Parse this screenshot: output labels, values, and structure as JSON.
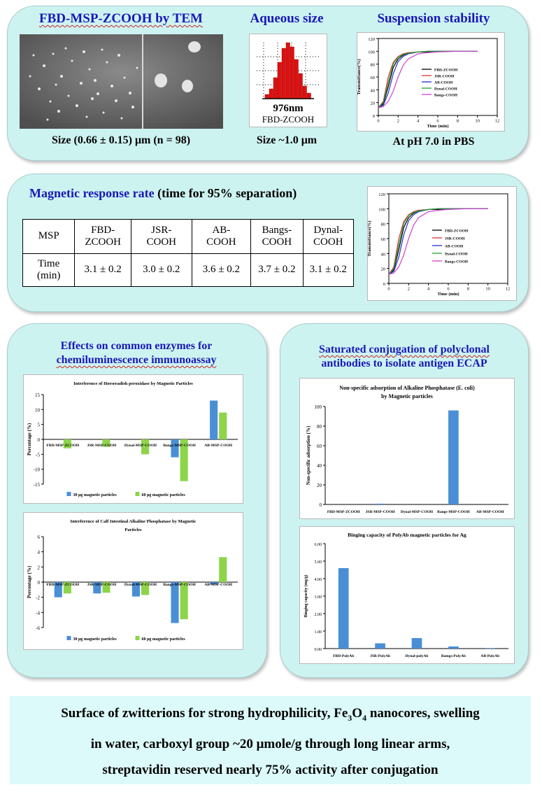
{
  "top": {
    "tem_title": "FBD-MSP-ZCOOH by TEM",
    "tem_caption": "Size (0.66 ± 0.15) μm (n = 98)",
    "aq_title": "Aqueous size",
    "aq_label_size": "976nm",
    "aq_label_name": "FBD-ZCOOH",
    "aq_caption": "Size ~1.0 μm",
    "stab_title": "Suspension stability",
    "stab_caption": "At pH 7.0 in PBS"
  },
  "magnetic": {
    "title_colored": "Magnetic response rate",
    "title_rest": " (time for 95% separation)",
    "header": [
      "MSP",
      "FBD-ZCOOH",
      "JSR-COOH",
      "AB-COOH",
      "Bangs-COOH",
      "Dynal-COOH"
    ],
    "header_display": [
      [
        "MSP"
      ],
      [
        "FBD-",
        "ZCOOH"
      ],
      [
        "JSR-",
        "COOH"
      ],
      [
        "AB-",
        "COOH"
      ],
      [
        "Bangs-",
        "COOH"
      ],
      [
        "Dynal-",
        "COOH"
      ]
    ],
    "row": [
      [
        "Time",
        "(min)"
      ],
      [
        "3.1 ± 0.2"
      ],
      [
        "3.0 ± 0.2"
      ],
      [
        "3.6 ± 0.2"
      ],
      [
        "3.7 ± 0.2"
      ],
      [
        "3.1 ± 0.2"
      ]
    ]
  },
  "enzymes": {
    "title_line1": "Effects on common enzymes for",
    "title_line2": "chemiluminescence immunoassay"
  },
  "conjugation": {
    "title_line1": "Saturated conjugation of polyclonal",
    "title_line2": "antibodies to isolate antigen ECAP"
  },
  "bottom_text": [
    "Surface of zwitterions for strong hydrophilicity, Fe3O4 nanocores, swelling",
    "in water, carboxyl group ~20 μmole/g through long linear arms,",
    "streptavidin reserved nearly 75% activity after conjugation"
  ],
  "colors": {
    "title_blue": "#1818b8",
    "panel": "#cdf3f1",
    "bar_blue": "#4a8fd6",
    "bar_green": "#8ed44a"
  },
  "chart_data": [
    {
      "type": "line",
      "id": "stability-top",
      "xlabel": "Time (min)",
      "ylabel": "Transmittance(%)",
      "xlim": [
        0,
        12
      ],
      "ylim": [
        0,
        120
      ],
      "xticks": [
        0,
        2,
        4,
        6,
        8,
        10,
        12
      ],
      "yticks": [
        0,
        20,
        40,
        60,
        80,
        100,
        120
      ],
      "legend_position": "right",
      "series": [
        {
          "name": "FBD-ZCOOH",
          "color": "#000000",
          "x": [
            0,
            0.5,
            1,
            1.5,
            2,
            2.5,
            3,
            4,
            5,
            6,
            8,
            10
          ],
          "y": [
            12,
            18,
            45,
            75,
            88,
            94,
            97,
            99,
            99,
            100,
            100,
            100
          ]
        },
        {
          "name": "JSR-COOH",
          "color": "#e03030",
          "x": [
            0,
            0.5,
            1,
            1.5,
            2,
            2.5,
            3,
            4,
            5,
            6,
            8,
            10
          ],
          "y": [
            12,
            22,
            60,
            83,
            92,
            96,
            98,
            99,
            100,
            100,
            100,
            100
          ]
        },
        {
          "name": "AB-COOH",
          "color": "#2030d0",
          "x": [
            0,
            0.5,
            1,
            1.5,
            2,
            2.5,
            3,
            4,
            5,
            6,
            8,
            10
          ],
          "y": [
            12,
            16,
            35,
            65,
            84,
            92,
            96,
            99,
            100,
            100,
            100,
            100
          ]
        },
        {
          "name": "Dynal-COOH",
          "color": "#20a030",
          "x": [
            0,
            0.5,
            1,
            1.5,
            2,
            2.5,
            3,
            4,
            5,
            6,
            8,
            10
          ],
          "y": [
            12,
            20,
            52,
            80,
            91,
            95,
            97,
            99,
            100,
            100,
            100,
            100
          ]
        },
        {
          "name": "Bangs-COOH",
          "color": "#d040d0",
          "x": [
            0,
            0.5,
            1,
            1.5,
            2,
            2.5,
            3,
            4,
            5,
            6,
            8,
            10
          ],
          "y": [
            12,
            14,
            22,
            38,
            60,
            78,
            88,
            96,
            98,
            99,
            100,
            100
          ]
        }
      ]
    },
    {
      "type": "line",
      "id": "stability-mag",
      "xlabel": "Time (min)",
      "ylabel": "Transmittance(%)",
      "xlim": [
        0,
        12
      ],
      "ylim": [
        0,
        120
      ],
      "xticks": [
        0,
        2,
        4,
        6,
        8,
        10,
        12
      ],
      "yticks": [
        0,
        20,
        40,
        60,
        80,
        100,
        120
      ],
      "legend_position": "right",
      "series": [
        {
          "name": "FBD-ZCOOH",
          "color": "#000000",
          "x": [
            0,
            0.5,
            1,
            1.5,
            2,
            2.5,
            3,
            4,
            5,
            6,
            8,
            10
          ],
          "y": [
            12,
            18,
            45,
            75,
            88,
            94,
            97,
            99,
            99,
            100,
            100,
            100
          ]
        },
        {
          "name": "JSR-COOH",
          "color": "#e03030",
          "x": [
            0,
            0.5,
            1,
            1.5,
            2,
            2.5,
            3,
            4,
            5,
            6,
            8,
            10
          ],
          "y": [
            12,
            22,
            60,
            83,
            92,
            96,
            98,
            99,
            100,
            100,
            100,
            100
          ]
        },
        {
          "name": "AB-COOH",
          "color": "#2030d0",
          "x": [
            0,
            0.5,
            1,
            1.5,
            2,
            2.5,
            3,
            4,
            5,
            6,
            8,
            10
          ],
          "y": [
            12,
            16,
            35,
            65,
            84,
            92,
            96,
            99,
            100,
            100,
            100,
            100
          ]
        },
        {
          "name": "Dynal-COOH",
          "color": "#20a030",
          "x": [
            0,
            0.5,
            1,
            1.5,
            2,
            2.5,
            3,
            4,
            5,
            6,
            8,
            10
          ],
          "y": [
            12,
            20,
            52,
            80,
            91,
            95,
            97,
            99,
            100,
            100,
            100,
            100
          ]
        },
        {
          "name": "Bangs-COOH",
          "color": "#d040d0",
          "x": [
            0,
            0.5,
            1,
            1.5,
            2,
            2.5,
            3,
            4,
            5,
            6,
            8,
            10
          ],
          "y": [
            12,
            14,
            22,
            38,
            60,
            78,
            88,
            96,
            98,
            99,
            100,
            100
          ]
        }
      ]
    },
    {
      "type": "bar",
      "id": "hrp",
      "title": "Interference of Horseradish peroxidase by Magnetic Particles",
      "ylabel": "Percentage (%)",
      "ylim": [
        -15,
        15
      ],
      "yticks": [
        -15,
        -10,
        -5,
        0,
        5,
        10,
        15
      ],
      "categories": [
        "FBD-MSP-ZCOOH",
        "JSR-MSP-COOH",
        "Dynal-MSP-COOH",
        "Bangs-MSP-COOH",
        "AB-MSP-COOH"
      ],
      "legend_position": "bottom",
      "series": [
        {
          "name": "30 μg magnetic particles",
          "color": "#4a8fd6",
          "values": [
            0,
            0,
            0,
            -6,
            13
          ]
        },
        {
          "name": "60 μg magnetic particles",
          "color": "#8ed44a",
          "values": [
            -3,
            -2.5,
            -5,
            -14,
            9
          ]
        }
      ]
    },
    {
      "type": "bar",
      "id": "ciap",
      "title": "Interference of Calf Intestinal Alkaline Phosphatase by Magnetic Particles",
      "title_lines": [
        "Interference of Calf Intestinal Alkaline Phosphatase by Magnetic",
        "Particles"
      ],
      "ylabel": "Percentage (%)",
      "ylim": [
        -6,
        6
      ],
      "yticks": [
        -6,
        -4,
        -2,
        0,
        2,
        4,
        6
      ],
      "categories": [
        "FBD-MSP-ZCOOH",
        "JSR-MSP-COOH",
        "Dynal-MSP-COOH",
        "Bangs-MSP-COOH",
        "AB-MSP-COOH"
      ],
      "legend_position": "bottom",
      "series": [
        {
          "name": "30 μg magnetic particles",
          "color": "#4a8fd6",
          "values": [
            -2,
            -1.5,
            -1.9,
            -5.4,
            -0.3
          ]
        },
        {
          "name": "60 μg magnetic particles",
          "color": "#8ed44a",
          "values": [
            -1.5,
            -1.4,
            -1.7,
            -4.9,
            3.3
          ]
        }
      ]
    },
    {
      "type": "bar",
      "id": "nonspecific",
      "title": "Non-specific adsorption of Alkaline Phosphatase (E. coli) by Magnetic particles",
      "title_lines": [
        "Non-specific adsorption of Alkaline Phosphatase (E. coli)",
        "by Magnetic particles"
      ],
      "ylabel": "Non-specific adsorption (%)",
      "ylim": [
        0,
        100
      ],
      "yticks": [
        0,
        20,
        40,
        60,
        80,
        100
      ],
      "categories": [
        "FBD-MSP-ZCOOH",
        "JSR-MSP-COOH",
        "Dynal-MSP-COOH",
        "Bangs-MSP-COOH",
        "AB-MSP-COOH"
      ],
      "series": [
        {
          "name": "",
          "color": "#4a8fd6",
          "values": [
            0,
            0.8,
            0,
            96,
            0
          ]
        }
      ]
    },
    {
      "type": "bar",
      "id": "binding",
      "title": "Binging capacity of PolyAb magnetic particles for Ag",
      "ylabel": "Binging capacity (mg/g)",
      "ylim": [
        0,
        6
      ],
      "yticks": [
        0,
        1,
        2,
        3,
        4,
        5,
        6
      ],
      "ytick_labels": [
        "0.00",
        "1.00",
        "2.00",
        "3.00",
        "4.00",
        "5.00",
        "6.00"
      ],
      "categories": [
        "FBD-PolyAb",
        "JSR-PolyAb",
        "Dynal-polyAb",
        "Bamgs-PolyAb",
        "AB-PolyAb"
      ],
      "series": [
        {
          "name": "",
          "color": "#4a8fd6",
          "values": [
            4.6,
            0.3,
            0.6,
            0.12,
            0.03
          ]
        }
      ]
    }
  ]
}
